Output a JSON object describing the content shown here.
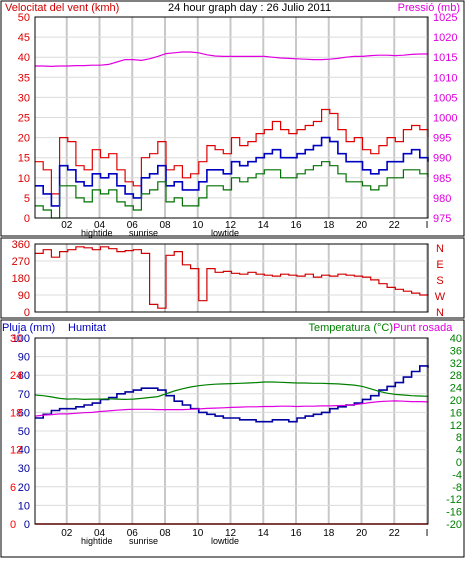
{
  "colors": {
    "wind_gust": "#e00000",
    "wind_avg": "#0000c0",
    "wind_low": "#007000",
    "pressure": "#e000e0",
    "direction": "#d00000",
    "temperature": "#008000",
    "humidity": "#0000a0",
    "dewpoint": "#e000e0",
    "rain": "#ff0000",
    "grid": "#c8c8c8",
    "frame": "#000000"
  },
  "chart_data": [
    {
      "type": "line",
      "title": "24 hour graph day : 26 Julio 2011",
      "ylabel_left": "Velocitat del vent (kmh)",
      "ylabel_right": "Pressió (mb)",
      "xticks": [
        "02",
        "04",
        "06",
        "08",
        "10",
        "12",
        "14",
        "16",
        "18",
        "20",
        "22",
        "I"
      ],
      "annotations": [
        "hightide",
        "sunrise",
        "lowtide"
      ],
      "ylim_left": [
        0,
        50
      ],
      "yticks_left": [
        0,
        5,
        10,
        15,
        20,
        25,
        30,
        35,
        40,
        45,
        50
      ],
      "ylim_right": [
        975,
        1025
      ],
      "yticks_right": [
        975,
        980,
        985,
        990,
        995,
        1000,
        1005,
        1010,
        1015,
        1020,
        1025
      ],
      "grid": true,
      "x_hours": [
        0,
        0.5,
        1,
        1.5,
        2,
        2.5,
        3,
        3.5,
        4,
        4.5,
        5,
        5.5,
        6,
        6.5,
        7,
        7.5,
        8,
        8.5,
        9,
        9.5,
        10,
        10.5,
        11,
        11.5,
        12,
        12.5,
        13,
        13.5,
        14,
        14.5,
        15,
        15.5,
        16,
        16.5,
        17,
        17.5,
        18,
        18.5,
        19,
        19.5,
        20,
        20.5,
        21,
        21.5,
        22,
        22.5,
        23,
        23.5,
        24
      ],
      "series": [
        {
          "role": "wind_gust",
          "values": [
            14,
            12,
            6,
            20,
            19,
            13,
            12,
            17,
            15,
            16,
            12,
            9,
            8,
            15,
            16,
            19,
            12,
            13,
            10,
            11,
            14,
            18,
            17,
            16,
            20,
            18,
            19,
            21,
            22,
            24,
            22,
            21,
            22,
            23,
            24,
            27,
            26,
            22,
            19,
            20,
            17,
            16,
            18,
            20,
            19,
            22,
            23,
            22,
            20
          ]
        },
        {
          "role": "wind_avg",
          "values": [
            8,
            6,
            3,
            13,
            12,
            9,
            8,
            11,
            10,
            11,
            8,
            6,
            5,
            10,
            11,
            13,
            8,
            9,
            7,
            7,
            9,
            12,
            12,
            11,
            14,
            13,
            14,
            15,
            16,
            17,
            15,
            15,
            16,
            17,
            18,
            20,
            19,
            16,
            14,
            14,
            12,
            11,
            12,
            14,
            14,
            16,
            17,
            15,
            14
          ]
        },
        {
          "role": "wind_low",
          "values": [
            3,
            2,
            0,
            8,
            8,
            5,
            4,
            7,
            6,
            7,
            4,
            3,
            2,
            6,
            7,
            9,
            4,
            5,
            3,
            3,
            5,
            8,
            8,
            7,
            10,
            9,
            10,
            11,
            12,
            12,
            10,
            10,
            11,
            12,
            13,
            14,
            13,
            11,
            9,
            9,
            8,
            7,
            8,
            10,
            10,
            12,
            12,
            11,
            10
          ]
        },
        {
          "role": "pressure",
          "values": [
            1012.8,
            1012.8,
            1012.7,
            1012.8,
            1012.8,
            1012.9,
            1012.9,
            1013.0,
            1013.0,
            1013.2,
            1013.8,
            1014.4,
            1014.4,
            1014.2,
            1014.6,
            1015.2,
            1015.9,
            1016.1,
            1016.3,
            1016.3,
            1016.1,
            1015.6,
            1015.3,
            1015.2,
            1015.2,
            1015.2,
            1015.2,
            1015.2,
            1015.2,
            1015.0,
            1014.8,
            1014.7,
            1014.6,
            1014.5,
            1014.4,
            1014.4,
            1014.5,
            1014.7,
            1015.0,
            1015.2,
            1015.2,
            1015.4,
            1015.5,
            1015.5,
            1015.4,
            1015.5,
            1015.7,
            1015.8,
            1015.8
          ]
        }
      ]
    },
    {
      "type": "line",
      "yticks_left": [
        0,
        90,
        180,
        270,
        360
      ],
      "ylim": [
        0,
        360
      ],
      "direction_labels": [
        "N",
        "W",
        "S",
        "E",
        "N"
      ],
      "grid": true,
      "x_hours": [
        0,
        0.5,
        1,
        1.5,
        2,
        2.5,
        3,
        3.5,
        4,
        4.5,
        5,
        5.5,
        6,
        6.5,
        7,
        7.5,
        8,
        8.5,
        9,
        9.5,
        10,
        10.5,
        11,
        11.5,
        12,
        12.5,
        13,
        13.5,
        14,
        14.5,
        15,
        15.5,
        16,
        16.5,
        17,
        17.5,
        18,
        18.5,
        19,
        19.5,
        20,
        20.5,
        21,
        21.5,
        22,
        22.5,
        23,
        23.5,
        24
      ],
      "series": [
        {
          "role": "direction",
          "values": [
            310,
            330,
            290,
            320,
            330,
            345,
            340,
            330,
            345,
            335,
            320,
            325,
            330,
            310,
            40,
            20,
            300,
            320,
            250,
            230,
            60,
            230,
            210,
            215,
            205,
            200,
            210,
            200,
            195,
            190,
            200,
            195,
            190,
            200,
            185,
            195,
            190,
            200,
            195,
            190,
            185,
            170,
            150,
            130,
            120,
            110,
            100,
            90,
            95
          ]
        }
      ]
    },
    {
      "type": "line",
      "ylabel_left": "Pluja (mm)",
      "ylabel_left2": "Humitat",
      "ylabel_right": "Temperatura (°C)",
      "ylabel_right2": "Punt rosada",
      "xticks": [
        "02",
        "04",
        "06",
        "08",
        "10",
        "12",
        "14",
        "16",
        "18",
        "20",
        "22",
        "I"
      ],
      "annotations": [
        "hightide",
        "sunrise",
        "lowtide"
      ],
      "ylim_rain": [
        0,
        30
      ],
      "yticks_rain": [
        0,
        6,
        12,
        18,
        24,
        30
      ],
      "ylim_humidity": [
        0,
        100
      ],
      "yticks_humidity": [
        0,
        10,
        20,
        30,
        40,
        50,
        60,
        70,
        80,
        90,
        100
      ],
      "ylim_temp": [
        -20,
        40
      ],
      "yticks_temp": [
        -20,
        -16,
        -12,
        -8,
        -4,
        0,
        4,
        8,
        12,
        16,
        20,
        24,
        28,
        32,
        36,
        40
      ],
      "grid": true,
      "x_hours": [
        0,
        0.5,
        1,
        1.5,
        2,
        2.5,
        3,
        3.5,
        4,
        4.5,
        5,
        5.5,
        6,
        6.5,
        7,
        7.5,
        8,
        8.5,
        9,
        9.5,
        10,
        10.5,
        11,
        11.5,
        12,
        12.5,
        13,
        13.5,
        14,
        14.5,
        15,
        15.5,
        16,
        16.5,
        17,
        17.5,
        18,
        18.5,
        19,
        19.5,
        20,
        20.5,
        21,
        21.5,
        22,
        22.5,
        23,
        23.5,
        24
      ],
      "series": [
        {
          "role": "rain",
          "values": [
            0,
            0,
            0,
            0,
            0,
            0,
            0,
            0,
            0,
            0,
            0,
            0,
            0,
            0,
            0,
            0,
            0,
            0,
            0,
            0,
            0,
            0,
            0,
            0,
            0,
            0,
            0,
            0,
            0,
            0,
            0,
            0,
            0,
            0,
            0,
            0,
            0,
            0,
            0,
            0,
            0,
            0,
            0,
            0,
            0,
            0,
            0,
            0,
            0
          ]
        },
        {
          "role": "humidity",
          "values": [
            57,
            59,
            61,
            62,
            62,
            63,
            64,
            65,
            67,
            68,
            70,
            71,
            72,
            73,
            73,
            72,
            69,
            66,
            64,
            62,
            60,
            59,
            58,
            57,
            57,
            56,
            56,
            55,
            55,
            56,
            56,
            55,
            57,
            58,
            59,
            60,
            62,
            63,
            64,
            65,
            67,
            69,
            72,
            74,
            76,
            79,
            82,
            85,
            84
          ]
        },
        {
          "role": "temperature",
          "values": [
            21.6,
            21.4,
            21.0,
            20.5,
            20.3,
            20.4,
            20.2,
            20.3,
            20.3,
            20.4,
            20.3,
            20.2,
            20.3,
            20.5,
            20.8,
            21.1,
            22.0,
            22.9,
            23.6,
            24.2,
            24.6,
            24.9,
            25.1,
            25.2,
            25.3,
            25.4,
            25.5,
            25.6,
            25.8,
            25.8,
            25.7,
            25.6,
            25.5,
            25.5,
            25.4,
            25.4,
            25.3,
            25.2,
            25.0,
            24.8,
            24.4,
            23.6,
            22.8,
            22.2,
            21.8,
            21.6,
            21.4,
            21.3,
            21.2
          ]
        },
        {
          "role": "dewpoint",
          "values": [
            14.8,
            15.1,
            15.3,
            15.5,
            15.5,
            15.7,
            15.9,
            16.0,
            16.3,
            16.5,
            16.7,
            16.9,
            17.0,
            17.0,
            17.0,
            16.9,
            16.9,
            16.9,
            16.9,
            17.0,
            17.1,
            17.3,
            17.4,
            17.5,
            17.6,
            17.7,
            17.8,
            17.8,
            17.9,
            17.9,
            18.0,
            18.0,
            17.9,
            18.0,
            18.0,
            18.1,
            18.1,
            18.2,
            18.3,
            18.5,
            18.8,
            19.2,
            19.5,
            19.6,
            19.7,
            19.6,
            19.5,
            19.5,
            19.4
          ]
        }
      ]
    }
  ]
}
